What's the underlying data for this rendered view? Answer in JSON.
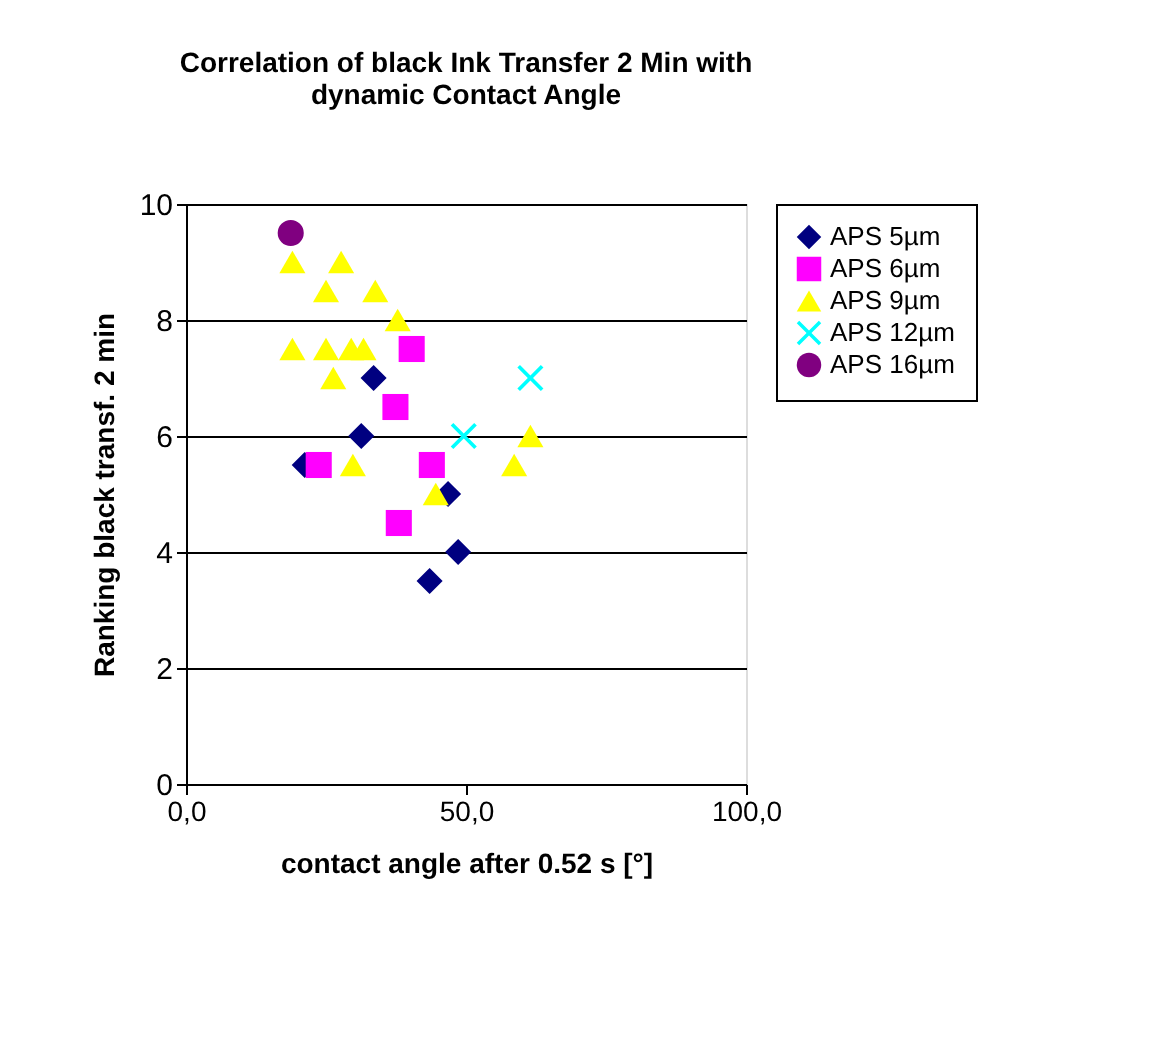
{
  "chart_data": {
    "type": "scatter",
    "title": "Correlation of black Ink Transfer 2 Min with dynamic Contact Angle",
    "xlabel": "contact angle after 0.52 s [°]",
    "ylabel": "Ranking black transf. 2 min",
    "xlim": [
      0,
      100
    ],
    "xticks": [
      {
        "value": 0,
        "label": "0,0"
      },
      {
        "value": 50,
        "label": "50,0"
      },
      {
        "value": 100,
        "label": "100,0"
      }
    ],
    "ylim": [
      0,
      10
    ],
    "yticks": [
      0,
      2,
      4,
      6,
      8,
      10
    ],
    "grid": "y",
    "legend": "right",
    "series": [
      {
        "name": "APS 5µm",
        "color": "#000080",
        "marker": "diamond",
        "x": [
          33.5,
          31.3,
          21.2,
          46.8,
          48.6,
          43.5
        ],
        "values": [
          7.0,
          6.0,
          5.5,
          5.0,
          4.0,
          3.5
        ]
      },
      {
        "name": "APS 6µm",
        "color": "#ff00ff",
        "marker": "square",
        "x": [
          40.3,
          37.4,
          23.7,
          43.9,
          38.0
        ],
        "values": [
          7.5,
          6.5,
          5.5,
          5.5,
          4.5
        ]
      },
      {
        "name": "APS 9µm",
        "color": "#ffff00",
        "marker": "triangle",
        "x": [
          19,
          27.7,
          25,
          33.8,
          37.8,
          19,
          25,
          29.5,
          31.7,
          26.3,
          29.8,
          61.5,
          58.6,
          44.6
        ],
        "values": [
          9,
          9,
          8.5,
          8.5,
          8,
          7.5,
          7.5,
          7.5,
          7.5,
          7,
          5.5,
          6,
          5.5,
          5
        ]
      },
      {
        "name": "APS 12µm",
        "color": "#00ffff",
        "marker": "cross",
        "x": [
          49.6,
          61.5
        ],
        "values": [
          6,
          7
        ]
      },
      {
        "name": "APS 16µm",
        "color": "#800080",
        "marker": "circle",
        "x": [
          18.7
        ],
        "values": [
          9.5
        ]
      }
    ]
  }
}
